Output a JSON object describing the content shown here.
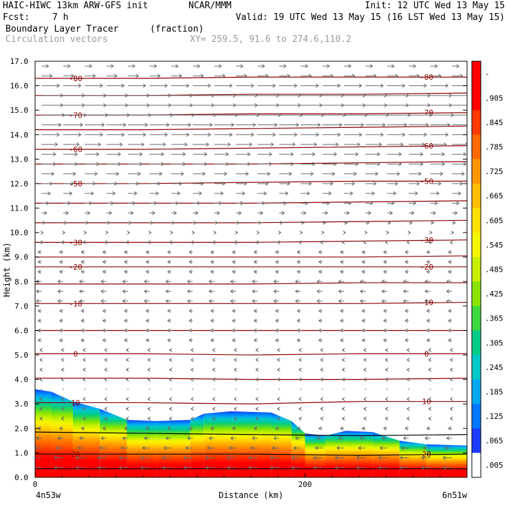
{
  "header": {
    "model": "HAIC-HIWC 13km ARW-GFS init",
    "org": "NCAR/MMM",
    "init": "Init: 12 UTC Wed 13 May 15",
    "fcst_label": "Fcst:",
    "fcst_value": "7 h",
    "valid": "Valid: 19 UTC Wed 13 May 15 (16 LST Wed 13 May 15)",
    "field": "Boundary Layer Tracer",
    "field_units": "(fraction)",
    "overlay": "Circulation vectors",
    "xy": "XY= 259.5, 91.6 to 274.6,110.2"
  },
  "chart_data": {
    "type": "area",
    "title": "Boundary Layer Tracer",
    "xlabel": "Distance (km)",
    "ylabel": "Height (km)",
    "xlim": [
      0,
      320
    ],
    "ylim": [
      0,
      17
    ],
    "x_ticks": [
      {
        "value": 0,
        "label": "0"
      },
      {
        "value": 200,
        "label": "200"
      }
    ],
    "x_end_labels": {
      "left": "4n53w",
      "right": "6n51w"
    },
    "y_ticks": [
      "0.0",
      "1.0",
      "2.0",
      "3.0",
      "4.0",
      "5.0",
      "6.0",
      "7.0",
      "8.0",
      "9.0",
      "10.0",
      "11.0",
      "12.0",
      "13.0",
      "14.0",
      "15.0",
      "16.0",
      "17.0"
    ],
    "colorbar": {
      "labels": [
        "-",
        ".905",
        ".845",
        ".785",
        ".725",
        ".665",
        ".605",
        ".545",
        ".485",
        ".425",
        ".365",
        ".305",
        ".245",
        ".185",
        ".125",
        ".065",
        ".005"
      ],
      "colors": [
        "#ff0000",
        "#ff0000",
        "#ff3a00",
        "#ff6a00",
        "#ff9600",
        "#ffbe00",
        "#ffe100",
        "#f5f500",
        "#c8f000",
        "#8ae600",
        "#3ed93e",
        "#00cc88",
        "#00c8c8",
        "#00a8f0",
        "#0078ff",
        "#1e3cff",
        "#ffffff"
      ]
    },
    "tracer_top_km": [
      {
        "x": 0,
        "y": 3.6
      },
      {
        "x": 12,
        "y": 3.5
      },
      {
        "x": 28,
        "y": 3.1
      },
      {
        "x": 48,
        "y": 2.8
      },
      {
        "x": 68,
        "y": 2.35
      },
      {
        "x": 90,
        "y": 2.3
      },
      {
        "x": 115,
        "y": 2.35
      },
      {
        "x": 125,
        "y": 2.6
      },
      {
        "x": 145,
        "y": 2.7
      },
      {
        "x": 175,
        "y": 2.65
      },
      {
        "x": 190,
        "y": 2.3
      },
      {
        "x": 200,
        "y": 1.8
      },
      {
        "x": 215,
        "y": 1.7
      },
      {
        "x": 230,
        "y": 1.9
      },
      {
        "x": 250,
        "y": 1.85
      },
      {
        "x": 270,
        "y": 1.5
      },
      {
        "x": 290,
        "y": 1.35
      },
      {
        "x": 320,
        "y": 1.3
      }
    ],
    "temperature_contours": [
      {
        "label": "-80",
        "y": [
          16.3,
          16.3,
          16.35,
          16.35,
          16.35
        ]
      },
      {
        "label": "",
        "y": [
          15.6,
          15.6,
          15.65,
          15.65,
          15.7
        ]
      },
      {
        "label": "-70",
        "y": [
          14.8,
          14.8,
          14.85,
          14.85,
          14.9
        ]
      },
      {
        "label": "",
        "y": [
          14.2,
          14.2,
          14.25,
          14.3,
          14.35
        ]
      },
      {
        "label": "-60",
        "y": [
          13.4,
          13.4,
          13.45,
          13.5,
          13.55
        ]
      },
      {
        "label": "",
        "y": [
          12.8,
          12.8,
          12.8,
          12.85,
          12.9
        ]
      },
      {
        "label": "-50",
        "y": [
          12.0,
          12.0,
          12.05,
          12.1,
          12.1
        ]
      },
      {
        "label": "",
        "y": [
          11.2,
          11.2,
          11.2,
          11.25,
          11.3
        ]
      },
      {
        "label": "",
        "y": [
          10.4,
          10.4,
          10.4,
          10.45,
          10.5
        ]
      },
      {
        "label": "-30",
        "y": [
          9.6,
          9.6,
          9.6,
          9.65,
          9.7
        ]
      },
      {
        "label": "",
        "y": [
          9.0,
          9.0,
          9.0,
          9.0,
          9.05
        ]
      },
      {
        "label": "-20",
        "y": [
          8.6,
          8.6,
          8.6,
          8.6,
          8.6
        ]
      },
      {
        "label": "",
        "y": [
          7.9,
          7.9,
          7.9,
          7.95,
          7.95
        ]
      },
      {
        "label": "-10",
        "y": [
          7.1,
          7.1,
          7.1,
          7.1,
          7.15
        ]
      },
      {
        "label": "",
        "y": [
          6.0,
          6.0,
          6.0,
          6.0,
          6.0
        ]
      },
      {
        "label": "0",
        "y": [
          5.05,
          5.05,
          5.0,
          5.05,
          5.05
        ]
      },
      {
        "label": "",
        "y": [
          4.05,
          4.05,
          4.0,
          4.0,
          4.05
        ]
      },
      {
        "label": "10",
        "y": [
          3.05,
          3.05,
          3.0,
          3.1,
          3.1
        ]
      },
      {
        "label": "",
        "y": [
          1.85,
          1.8,
          1.75,
          1.7,
          1.75
        ]
      },
      {
        "label": "20",
        "y": [
          0.95,
          0.95,
          0.95,
          0.9,
          0.95
        ]
      },
      {
        "label": "",
        "y": [
          0.35,
          0.35,
          0.35,
          0.35,
          0.35
        ]
      }
    ],
    "contour_x": [
      0,
      80,
      160,
      240,
      320
    ],
    "vectors": {
      "rows_km": [
        16.8,
        16.4,
        16.0,
        15.6,
        15.2,
        14.8,
        14.4,
        14.0,
        13.6,
        13.2,
        12.8,
        12.4,
        12.0,
        11.6,
        11.2,
        10.8,
        10.4,
        10.0,
        9.6,
        9.2,
        8.8,
        8.4,
        8.0,
        7.6,
        7.2,
        6.8,
        6.4,
        6.0,
        5.6,
        5.2,
        4.8,
        4.4,
        4.0,
        3.6,
        3.2,
        2.8,
        2.4,
        2.0,
        1.6,
        1.2,
        0.8,
        0.4
      ],
      "u_ms": [
        4,
        6,
        10,
        12,
        12,
        13,
        11,
        10,
        9,
        8,
        8,
        7,
        6,
        5,
        4,
        3,
        2,
        1,
        -1,
        -2,
        -2,
        -2,
        -3,
        -3,
        -3,
        -2,
        -2,
        -2,
        -2,
        -1,
        -1,
        -1,
        -1,
        0,
        -1,
        -1,
        -1,
        -2,
        -3,
        -4,
        -5,
        -5
      ]
    }
  }
}
